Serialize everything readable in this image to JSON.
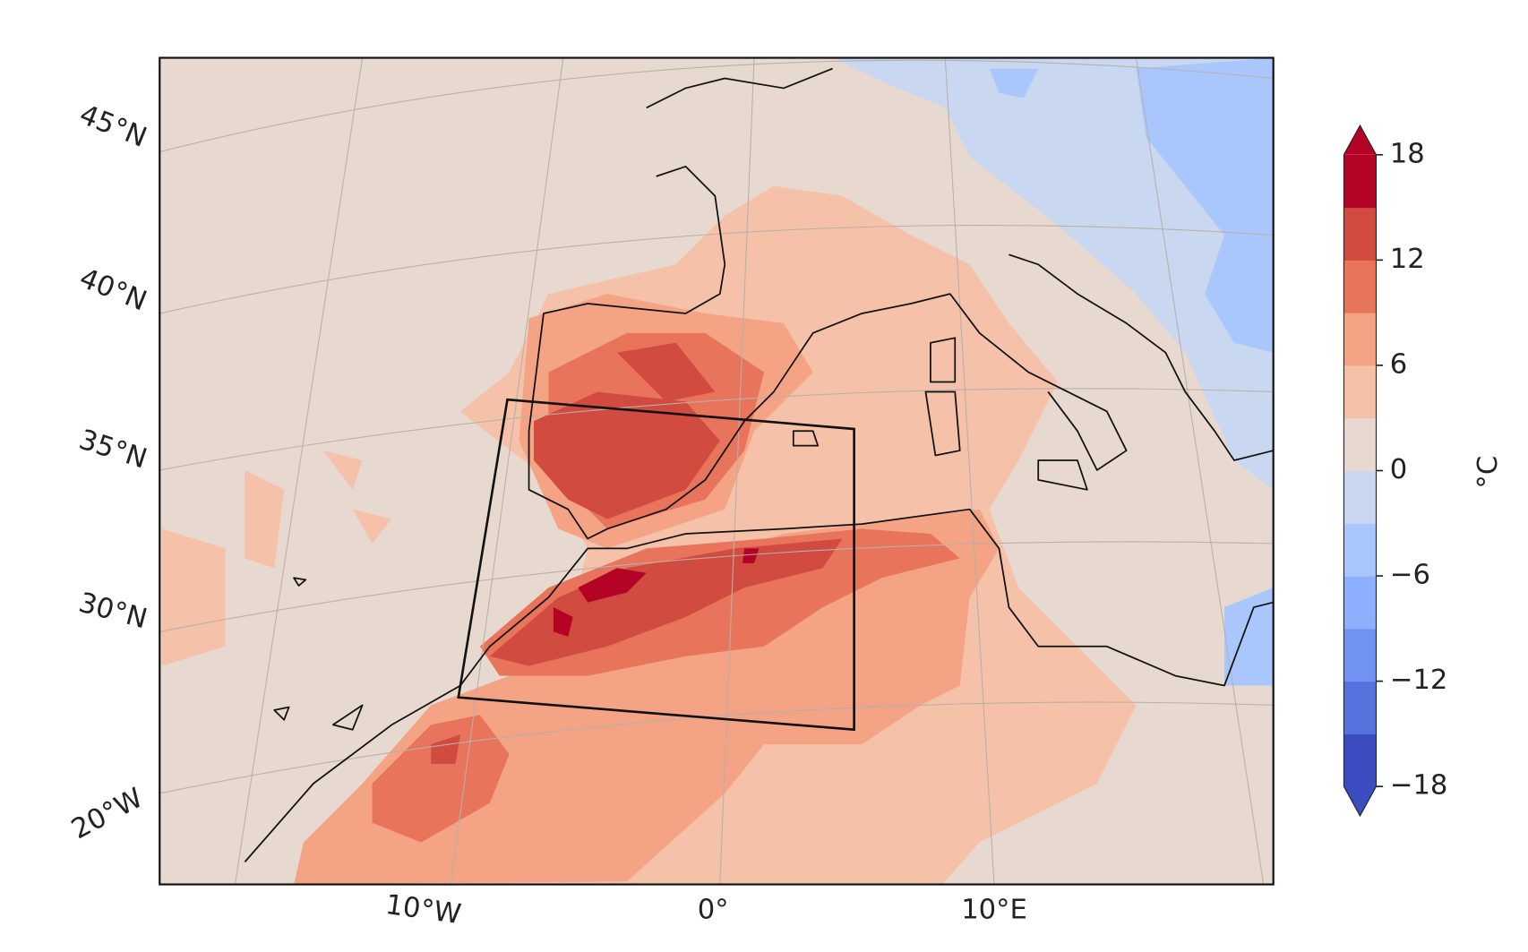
{
  "chart_data": {
    "type": "map",
    "lat_labels": [
      "45°N",
      "40°N",
      "35°N",
      "30°N",
      "20°W"
    ],
    "lon_labels": [
      "10°W",
      "0°",
      "10°E"
    ],
    "colorbar": {
      "label": "°C",
      "clim": [
        -18,
        18
      ],
      "ticks": [
        {
          "value": 18,
          "label": "18"
        },
        {
          "value": 12,
          "label": "12"
        },
        {
          "value": 6,
          "label": "6"
        },
        {
          "value": 0,
          "label": "0"
        },
        {
          "value": -6,
          "label": "−6"
        },
        {
          "value": -12,
          "label": "−12"
        },
        {
          "value": -18,
          "label": "−18"
        }
      ],
      "colors": [
        "#3b4cc0",
        "#5572df",
        "#6f92f3",
        "#8db0fe",
        "#aac7fd",
        "#c9d7f0",
        "#e7d9cf",
        "#f5c1a9",
        "#f4a384",
        "#e7745b",
        "#d24b40",
        "#b40426"
      ],
      "extend": "both"
    }
  }
}
